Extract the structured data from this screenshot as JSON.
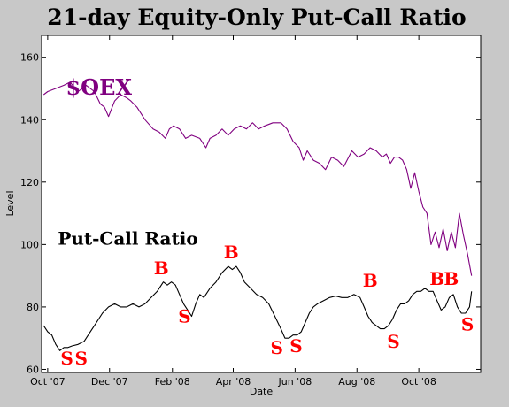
{
  "chart_data": {
    "type": "line",
    "title": "21-day Equity-Only Put-Call Ratio",
    "xlabel": "Date",
    "ylabel": "Level",
    "ylim": [
      59,
      167
    ],
    "yticks": [
      60,
      80,
      100,
      120,
      140,
      160
    ],
    "x_ticks": [
      "Oct '07",
      "Dec '07",
      "Feb '08",
      "Apr '08",
      "Jun '08",
      "Aug '08",
      "Oct '08"
    ],
    "x_tick_days": [
      0,
      61,
      123,
      183,
      244,
      305,
      366
    ],
    "x_range_days": [
      -6,
      427
    ],
    "grid": false,
    "colors": {
      "oex": "#800080",
      "pcr": "#000000",
      "signals": "#ff0000"
    },
    "series": [
      {
        "name": "$OEX",
        "label_day": 18,
        "label_value": 148,
        "x_days": [
          -4,
          0,
          8,
          16,
          22,
          30,
          38,
          46,
          52,
          56,
          60,
          66,
          72,
          78,
          82,
          88,
          96,
          104,
          110,
          116,
          120,
          124,
          130,
          136,
          142,
          150,
          156,
          160,
          166,
          172,
          178,
          184,
          190,
          196,
          202,
          208,
          214,
          222,
          230,
          236,
          242,
          248,
          252,
          256,
          262,
          268,
          274,
          280,
          286,
          292,
          300,
          306,
          312,
          318,
          324,
          330,
          334,
          338,
          342,
          346,
          350,
          354,
          358,
          362,
          366,
          370,
          374,
          378,
          382,
          386,
          390,
          394,
          398,
          402,
          406,
          410,
          414,
          418
        ],
        "values": [
          148,
          149,
          150,
          151,
          152,
          149,
          151,
          149,
          145,
          144,
          141,
          146,
          148,
          147,
          146,
          144,
          140,
          137,
          136,
          134,
          137,
          138,
          137,
          134,
          135,
          134,
          131,
          134,
          135,
          137,
          135,
          137,
          138,
          137,
          139,
          137,
          138,
          139,
          139,
          137,
          133,
          131,
          127,
          130,
          127,
          126,
          124,
          128,
          127,
          125,
          130,
          128,
          129,
          131,
          130,
          128,
          129,
          126,
          128,
          128,
          127,
          124,
          118,
          123,
          117,
          112,
          110,
          100,
          104,
          99,
          105,
          98,
          104,
          99,
          110,
          103,
          97,
          90
        ]
      },
      {
        "name": "Put-Call Ratio",
        "label_day": 10,
        "label_value": 100,
        "x_days": [
          -4,
          0,
          4,
          8,
          12,
          16,
          20,
          24,
          30,
          36,
          42,
          48,
          54,
          60,
          66,
          72,
          78,
          84,
          90,
          96,
          102,
          108,
          114,
          118,
          122,
          126,
          130,
          134,
          138,
          142,
          146,
          150,
          154,
          160,
          166,
          172,
          178,
          182,
          186,
          190,
          194,
          200,
          206,
          212,
          218,
          224,
          230,
          234,
          238,
          242,
          246,
          250,
          254,
          258,
          262,
          266,
          272,
          278,
          284,
          290,
          296,
          302,
          308,
          312,
          316,
          320,
          324,
          328,
          332,
          336,
          340,
          344,
          348,
          352,
          356,
          360,
          364,
          368,
          372,
          376,
          380,
          384,
          388,
          392,
          396,
          400,
          404,
          408,
          412,
          416,
          418
        ],
        "values": [
          74,
          72,
          71,
          68,
          66,
          67,
          67,
          67.5,
          68,
          69,
          72,
          75,
          78,
          80,
          81,
          80,
          80,
          81,
          80,
          81,
          83,
          85,
          88,
          87,
          88,
          87,
          84,
          81,
          79,
          77,
          81,
          84,
          83,
          86,
          88,
          91,
          93,
          92,
          93,
          91,
          88,
          86,
          84,
          83,
          81,
          77,
          73,
          70,
          70,
          71,
          71,
          72,
          75,
          78,
          80,
          81,
          82,
          83,
          83.5,
          83,
          83,
          84,
          83,
          80,
          77,
          75,
          74,
          73,
          73,
          74,
          76,
          79,
          81,
          81,
          82,
          84,
          85,
          85,
          86,
          85,
          85,
          82,
          79,
          80,
          83,
          84,
          80,
          78,
          78,
          80,
          85
        ]
      }
    ],
    "annotations": [
      {
        "text": "S",
        "day": 19,
        "value": 61.5
      },
      {
        "text": "S",
        "day": 33,
        "value": 61.5
      },
      {
        "text": "B",
        "day": 112,
        "value": 90.5
      },
      {
        "text": "S",
        "day": 135,
        "value": 75
      },
      {
        "text": "B",
        "day": 181,
        "value": 95.5
      },
      {
        "text": "S",
        "day": 226,
        "value": 65
      },
      {
        "text": "S",
        "day": 245,
        "value": 65.5
      },
      {
        "text": "B",
        "day": 318,
        "value": 86.5
      },
      {
        "text": "S",
        "day": 341,
        "value": 67
      },
      {
        "text": "B",
        "day": 384,
        "value": 87
      },
      {
        "text": "B",
        "day": 398,
        "value": 87
      },
      {
        "text": "S",
        "day": 414,
        "value": 72.5
      }
    ]
  }
}
